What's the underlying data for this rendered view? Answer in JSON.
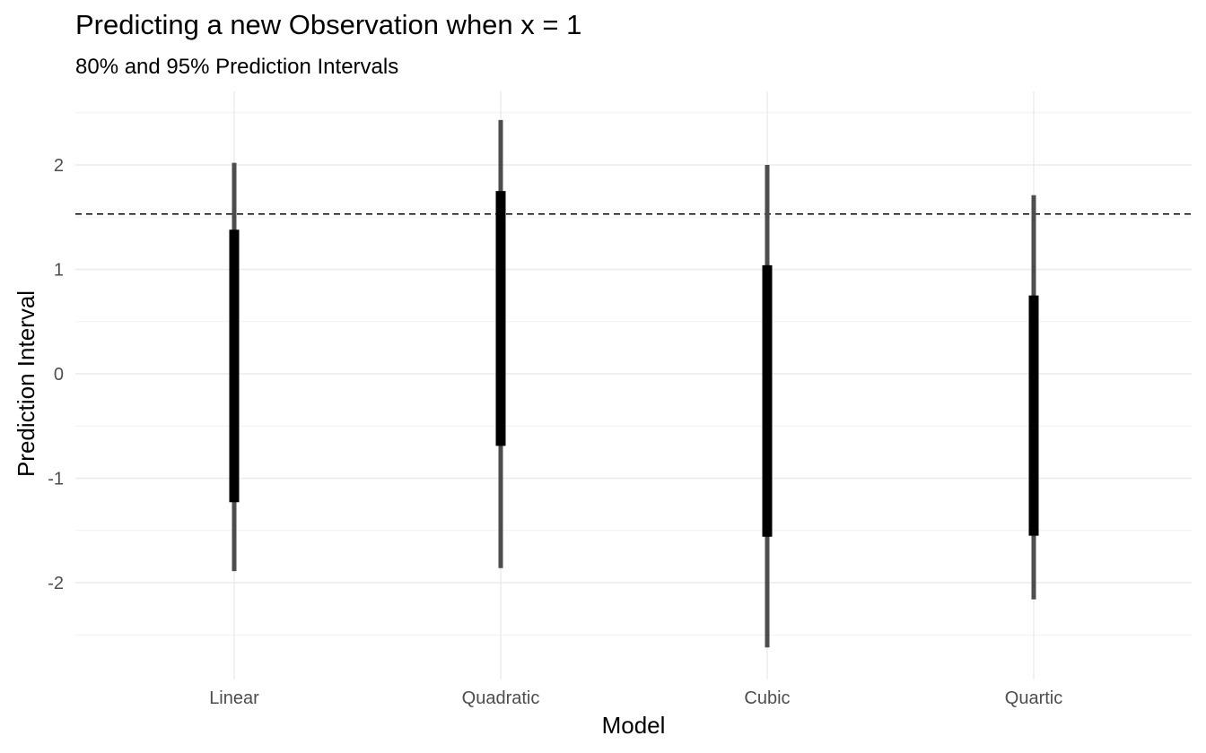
{
  "chart_data": {
    "type": "interval",
    "title": "Predicting a new Observation when x = 1",
    "subtitle": "80% and 95% Prediction Intervals",
    "xlabel": "Model",
    "ylabel": "Prediction Interval",
    "categories": [
      "Linear",
      "Quadratic",
      "Cubic",
      "Quartic"
    ],
    "intervals_95": [
      {
        "low": -1.89,
        "high": 2.02
      },
      {
        "low": -1.86,
        "high": 2.43
      },
      {
        "low": -2.62,
        "high": 2.0
      },
      {
        "low": -2.16,
        "high": 1.71
      }
    ],
    "intervals_80": [
      {
        "low": -1.23,
        "high": 1.38
      },
      {
        "low": -0.69,
        "high": 1.75
      },
      {
        "low": -1.56,
        "high": 1.04
      },
      {
        "low": -1.55,
        "high": 0.75
      }
    ],
    "reference_line": 1.53,
    "ylim": [
      -2.75,
      2.6
    ],
    "yticks": [
      "2",
      "1",
      "0",
      "-1",
      "-2"
    ],
    "ytick_values": [
      2,
      1,
      0,
      -1,
      -2
    ],
    "grid": true,
    "colors": {
      "outer": "#4d4d4d",
      "inner": "#000000",
      "grid": "#ebebeb",
      "reference": "#000000"
    }
  }
}
